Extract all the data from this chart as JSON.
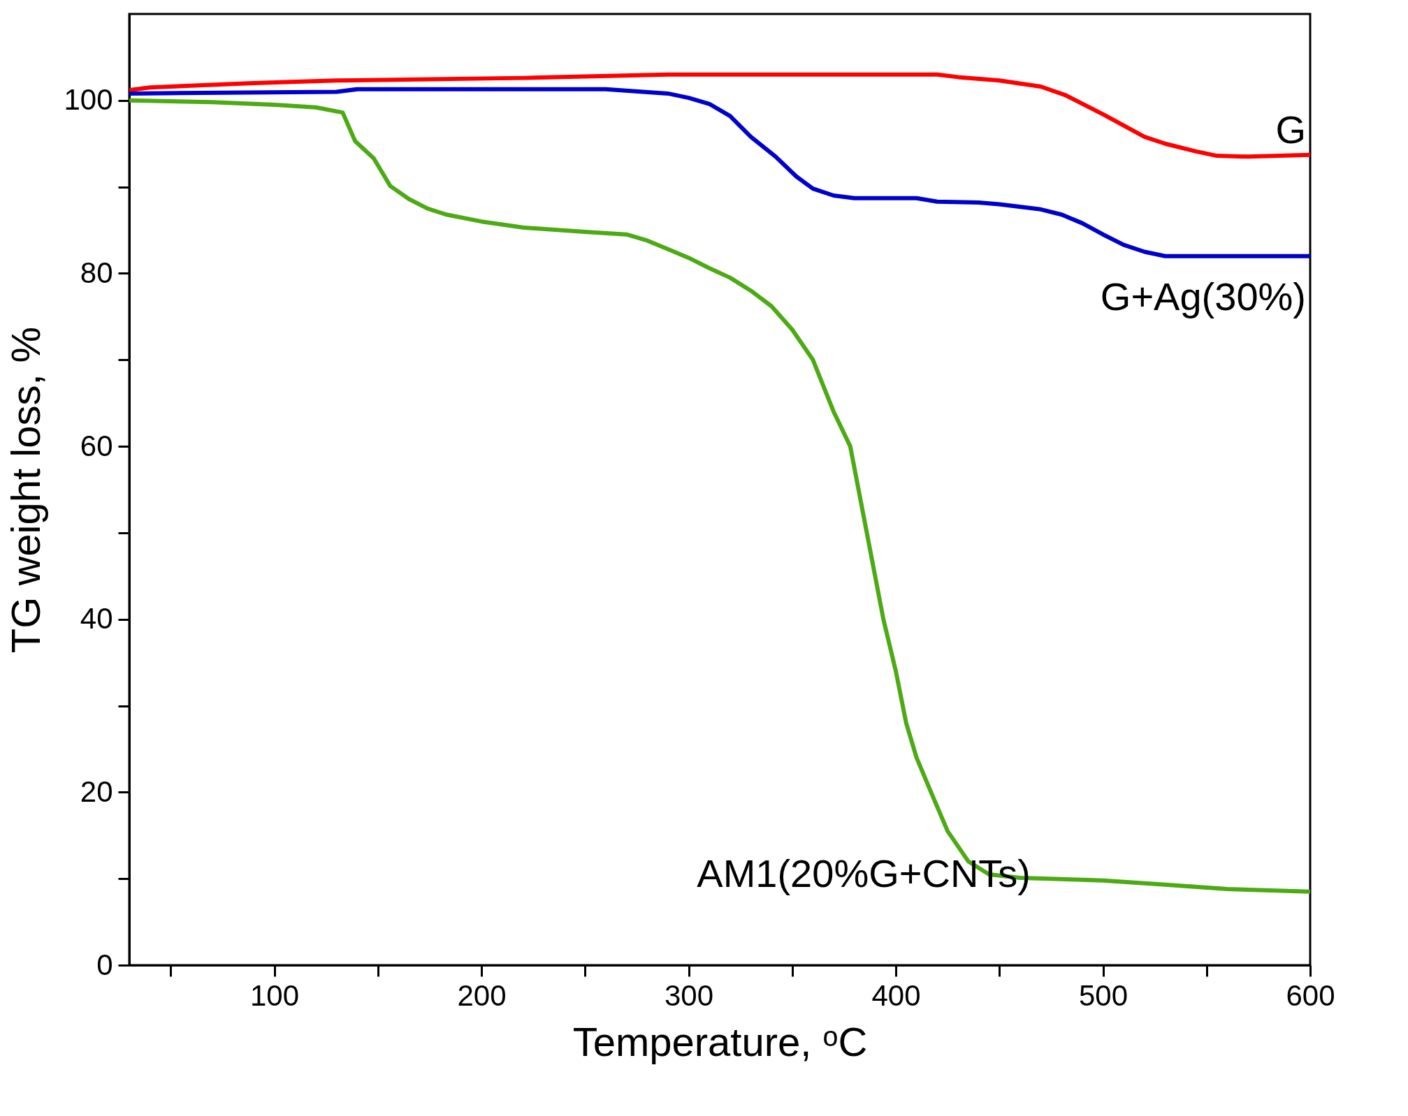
{
  "chart_data": {
    "type": "line",
    "xlabel": "Temperature, ᵒC",
    "ylabel": "TG weight loss, %",
    "xlim": [
      30,
      600
    ],
    "ylim": [
      0,
      110
    ],
    "xticks": [
      {
        "value": 50,
        "label": null
      },
      100,
      {
        "value": 150,
        "label": null
      },
      200,
      {
        "value": 250,
        "label": null
      },
      300,
      {
        "value": 350,
        "label": null
      },
      400,
      {
        "value": 450,
        "label": null
      },
      500,
      {
        "value": 550,
        "label": null
      },
      600
    ],
    "yticks": [
      0,
      {
        "value": 10,
        "label": null
      },
      20,
      {
        "value": 30,
        "label": null
      },
      40,
      {
        "value": 50,
        "label": null
      },
      60,
      {
        "value": 70,
        "label": null
      },
      80,
      {
        "value": 90,
        "label": null
      },
      100
    ],
    "grid": false,
    "legend": false,
    "line_style": "solid",
    "marker": "none",
    "series": [
      {
        "name": "G",
        "color": "#ff0000",
        "x": [
          30,
          40,
          90,
          130,
          220,
          290,
          420,
          430,
          450,
          470,
          482,
          500,
          520,
          530,
          545,
          555,
          570,
          600
        ],
        "values": [
          101.2,
          101.5,
          102,
          102.3,
          102.6,
          103,
          103,
          102.7,
          102.3,
          101.6,
          100.6,
          98.4,
          95.8,
          95,
          94.1,
          93.6,
          93.5,
          93.7
        ]
      },
      {
        "name": "G+Ag(30%)",
        "color": "#0000cc",
        "x": [
          30,
          130,
          140,
          260,
          290,
          300,
          310,
          320,
          330,
          342,
          352,
          360,
          370,
          380,
          410,
          420,
          440,
          450,
          470,
          480,
          490,
          500,
          510,
          520,
          530,
          600
        ],
        "values": [
          100.8,
          101,
          101.3,
          101.3,
          100.8,
          100.3,
          99.6,
          98.2,
          95.8,
          93.5,
          91.2,
          89.8,
          89,
          88.7,
          88.7,
          88.3,
          88.2,
          88,
          87.4,
          86.8,
          85.8,
          84.5,
          83.3,
          82.5,
          82,
          82
        ]
      },
      {
        "name": "AM1(20%G+CNTs)",
        "color": "#4caa14",
        "x": [
          30,
          70,
          100,
          120,
          133,
          139,
          148,
          156,
          165,
          174,
          183,
          200,
          220,
          250,
          270,
          280,
          290,
          300,
          310,
          320,
          330,
          340,
          350,
          360,
          370,
          378,
          386,
          394,
          400,
          405,
          410,
          417,
          425,
          435,
          445,
          460,
          500,
          530,
          560,
          600
        ],
        "values": [
          100,
          99.8,
          99.5,
          99.2,
          98.6,
          95.3,
          93.3,
          90.1,
          88.6,
          87.5,
          86.8,
          86,
          85.3,
          84.8,
          84.5,
          83.8,
          82.8,
          81.8,
          80.6,
          79.5,
          78,
          76.2,
          73.5,
          70,
          64,
          60,
          50,
          40,
          34,
          28,
          24,
          20,
          15.5,
          12,
          10.5,
          10.1,
          9.8,
          9.3,
          8.8,
          8.5
        ]
      }
    ]
  }
}
